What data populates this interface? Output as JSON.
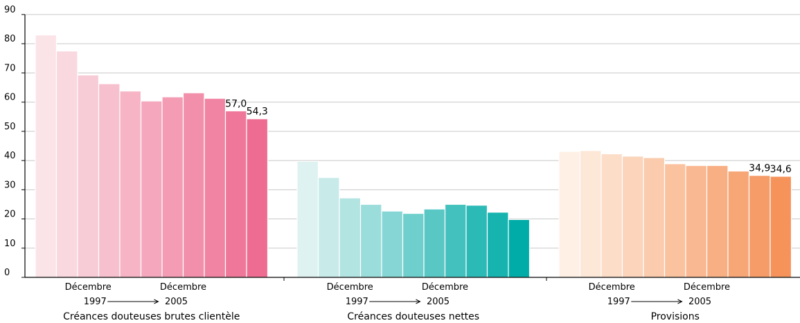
{
  "chart_data": {
    "type": "bar",
    "ylim": [
      0,
      90
    ],
    "y_ticks": [
      "0",
      "10",
      "20",
      "30",
      "40",
      "50",
      "60",
      "70",
      "80",
      "90"
    ],
    "grid": true,
    "x_note": {
      "start_label": "Décembre",
      "start_year": "1997",
      "end_label": "Décembre",
      "end_year": "2005"
    },
    "groups": [
      {
        "name": "Créances douteuses brutes clientèle",
        "values": [
          83.0,
          77.5,
          69.3,
          66.3,
          63.8,
          60.4,
          61.8,
          63.2,
          61.3,
          57.0,
          54.3
        ],
        "labels": [
          {
            "index": 9,
            "text": "57,0"
          },
          {
            "index": 10,
            "text": "54,3"
          }
        ],
        "color_light": "#fbe4e8",
        "color_dark": "#ee6c91"
      },
      {
        "name": "Créances douteuses nettes",
        "values": [
          39.7,
          34.2,
          27.2,
          25.0,
          22.7,
          21.9,
          23.4,
          25.0,
          24.7,
          22.3,
          19.8
        ],
        "labels": [],
        "color_light": "#def2f1",
        "color_dark": "#00aca8"
      },
      {
        "name": "Provisions",
        "values": [
          43.1,
          43.4,
          42.3,
          41.5,
          41.0,
          38.9,
          38.3,
          38.3,
          36.4,
          34.9,
          34.6
        ],
        "labels": [
          {
            "index": 9,
            "text": "34,9"
          },
          {
            "index": 10,
            "text": "34,6"
          }
        ],
        "color_light": "#fef0e4",
        "color_dark": "#f5935a"
      }
    ]
  }
}
